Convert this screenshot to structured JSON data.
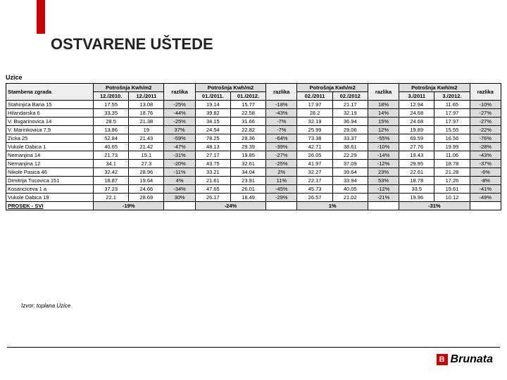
{
  "accent_color": "#c00",
  "title": "OSTVARENE UŠTEDE",
  "city": "Uzice",
  "footer_note": "Izvor: toplana Uzice",
  "logo": {
    "initial": "B",
    "name": "Brunata"
  },
  "headers": {
    "building": "Stambena zgrada",
    "consumption": "Potrošnja Kwh/m2",
    "diff": "razlika",
    "periods": [
      [
        "12./2010.",
        "12./2011"
      ],
      [
        "01./2011.",
        "01./2012."
      ],
      [
        "02./2011",
        "02./2012"
      ],
      [
        "3./2011",
        "3./2012."
      ]
    ]
  },
  "rows": [
    {
      "name": "Stahinjića Bana 15",
      "v": [
        "17.55",
        "13.08",
        "-25%",
        "19.14",
        "15.77",
        "-18%",
        "17.97",
        "21.17",
        "18%",
        "12.94",
        "11.65",
        "-10%"
      ]
    },
    {
      "name": "Hilandarska 6",
      "v": [
        "33.35",
        "18.76",
        "-44%",
        "39.82",
        "22.58",
        "-43%",
        "28.2",
        "32.19",
        "14%",
        "24.68",
        "17.97",
        "-27%"
      ]
    },
    {
      "name": "V. Bugarinovica 14",
      "v": [
        "28.5",
        "21.38",
        "-25%",
        "34.15",
        "31.66",
        "-7%",
        "32.19",
        "36.94",
        "15%",
        "24.68",
        "17.97",
        "-27%"
      ]
    },
    {
      "name": "V. Marinkovica 7,9",
      "v": [
        "13.86",
        "19",
        "37%",
        "24.54",
        "22.82",
        "-7%",
        "25.99",
        "29.06",
        "12%",
        "19.89",
        "15.55",
        "-22%"
      ]
    },
    {
      "name": "Zicka 25",
      "v": [
        "52.84",
        "21.43",
        "-59%",
        "78.25",
        "28.36",
        "-64%",
        "73.38",
        "33.37",
        "-55%",
        "69.59",
        "16.56",
        "-76%"
      ]
    },
    {
      "name": "Vukole Dabica 1",
      "v": [
        "40.65",
        "21.42",
        "-47%",
        "48.13",
        "29.39",
        "-39%",
        "42.71",
        "38.61",
        "-10%",
        "27.76",
        "19.99",
        "-28%"
      ]
    },
    {
      "name": "Nemanjina 14",
      "v": [
        "21.73",
        "15.1",
        "-31%",
        "27.17",
        "19.85",
        "-27%",
        "26.05",
        "22.29",
        "-14%",
        "19.43",
        "11.06",
        "-43%"
      ]
    },
    {
      "name": "Nemanjina 12",
      "v": [
        "34.1",
        "27.3",
        "-20%",
        "43.75",
        "32.61",
        "-25%",
        "41.97",
        "37.09",
        "-12%",
        "29.95",
        "18.78",
        "-37%"
      ]
    },
    {
      "name": "Nikole Pasica 46",
      "v": [
        "32.42",
        "28.96",
        "-11%",
        "33.21",
        "34.04",
        "2%",
        "32.27",
        "39.64",
        "23%",
        "22.61",
        "21.28",
        "-6%"
      ]
    },
    {
      "name": "Dimitrija Tucovica 151",
      "v": [
        "18.87",
        "19.64",
        "4%",
        "21.61",
        "23.91",
        "11%",
        "22.17",
        "33.94",
        "53%",
        "18.78",
        "17.26",
        "-8%"
      ]
    },
    {
      "name": "Kosanciceva 1 a",
      "v": [
        "37.23",
        "24.66",
        "-34%",
        "47.65",
        "26.01",
        "-45%",
        "45.73",
        "40.05",
        "-12%",
        "33.5",
        "19.61",
        "-41%"
      ]
    },
    {
      "name": "Vukole Dabica 19",
      "v": [
        "22.1",
        "28.69",
        "30%",
        "26.17",
        "18.49",
        "-29%",
        "26.57",
        "21.02",
        "-21%",
        "19.96",
        "10.12",
        "-49%"
      ]
    }
  ],
  "summary": {
    "name": "PROSEK - SVI",
    "v": [
      "",
      "-19%",
      "",
      "",
      "-24%",
      "",
      "",
      "1%",
      "",
      "",
      "-31%",
      ""
    ]
  }
}
